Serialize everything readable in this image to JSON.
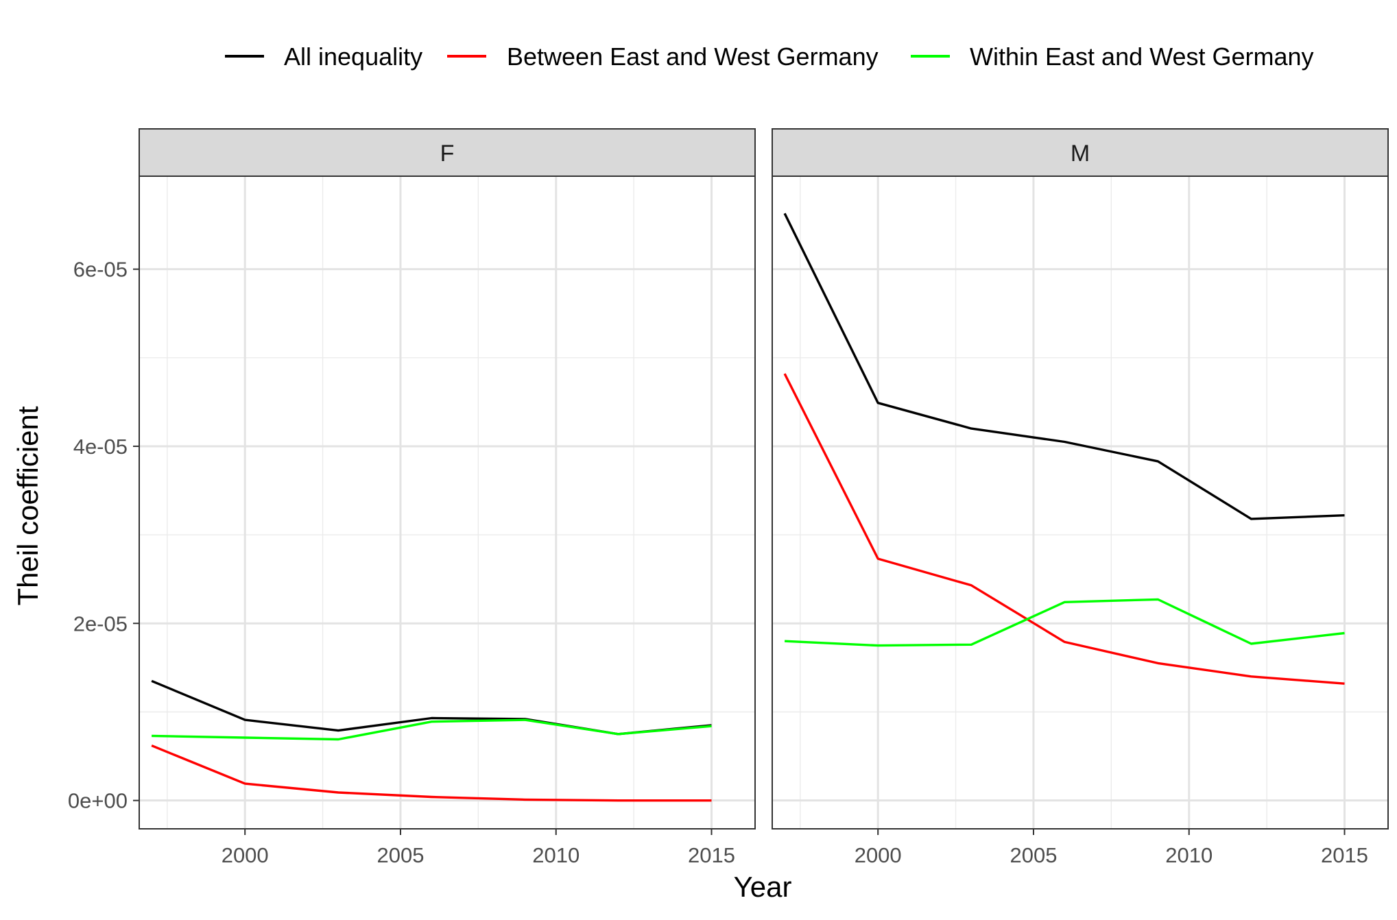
{
  "chart_data": {
    "type": "line",
    "xlabel": "Year",
    "ylabel": "Theil coefficient",
    "xlim": [
      1996.6,
      2016.4
    ],
    "ylim": [
      -3.2e-06,
      7.05e-05
    ],
    "x_ticks": [
      2000,
      2005,
      2010,
      2015
    ],
    "x_tick_labels": [
      "2000",
      "2005",
      "2010",
      "2015"
    ],
    "x_minor_ticks": [
      1997.5,
      2002.5,
      2007.5,
      2012.5
    ],
    "y_ticks": [
      0,
      2e-05,
      4e-05,
      6e-05
    ],
    "y_tick_labels": [
      "0e+00",
      "2e-05",
      "4e-05",
      "6e-05"
    ],
    "y_minor_ticks": [
      1e-05,
      3e-05,
      5e-05
    ],
    "grid": true,
    "legend_position": "top",
    "legend": [
      {
        "name": "All inequality",
        "color": "#000000"
      },
      {
        "name": "Between East and West Germany",
        "color": "#ff0000"
      },
      {
        "name": "Within East and West Germany",
        "color": "#00ff00"
      }
    ],
    "x": [
      1997,
      2000,
      2003,
      2006,
      2009,
      2012,
      2015
    ],
    "panels": [
      {
        "label": "F",
        "series": [
          {
            "name": "All inequality",
            "values": [
              1.35e-05,
              9.1e-06,
              7.9e-06,
              9.3e-06,
              9.2e-06,
              7.5e-06,
              8.5e-06
            ]
          },
          {
            "name": "Between East and West Germany",
            "values": [
              6.2e-06,
              1.9e-06,
              9e-07,
              4e-07,
              1e-07,
              0.0,
              0.0
            ]
          },
          {
            "name": "Within East and West Germany",
            "values": [
              7.3e-06,
              7.1e-06,
              6.9e-06,
              8.9e-06,
              9.1e-06,
              7.5e-06,
              8.4e-06
            ]
          }
        ]
      },
      {
        "label": "M",
        "series": [
          {
            "name": "All inequality",
            "values": [
              6.63e-05,
              4.49e-05,
              4.2e-05,
              4.05e-05,
              3.83e-05,
              3.18e-05,
              3.22e-05
            ]
          },
          {
            "name": "Between East and West Germany",
            "values": [
              4.82e-05,
              2.73e-05,
              2.43e-05,
              1.79e-05,
              1.55e-05,
              1.4e-05,
              1.32e-05
            ]
          },
          {
            "name": "Within East and West Germany",
            "values": [
              1.8e-05,
              1.75e-05,
              1.76e-05,
              2.24e-05,
              2.27e-05,
              1.77e-05,
              1.89e-05
            ]
          }
        ]
      }
    ]
  }
}
